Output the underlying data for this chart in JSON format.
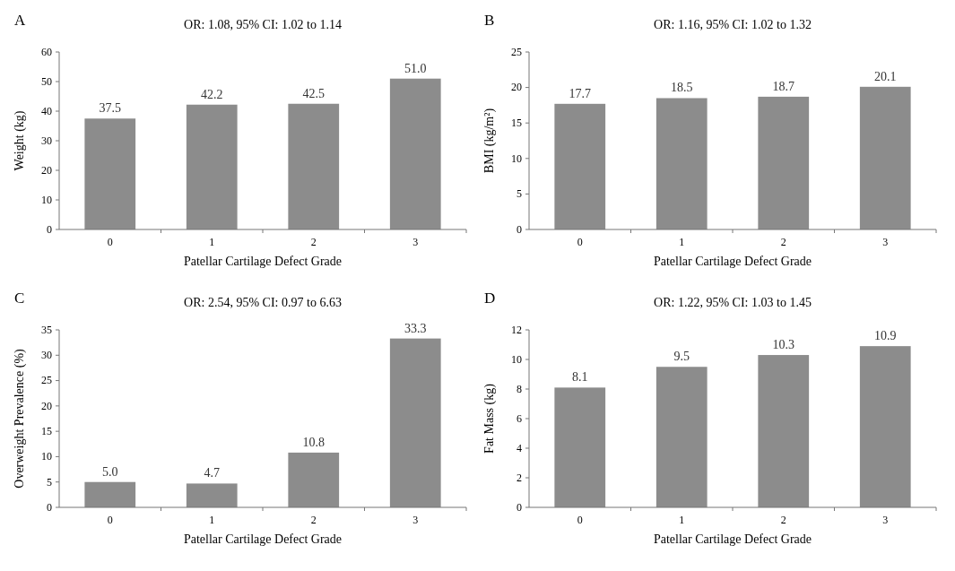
{
  "chart_data": [
    {
      "type": "bar",
      "title": "A",
      "subtitle": "OR: 1.08, 95% CI: 1.02 to 1.14",
      "xlabel": "Patellar Cartilage Defect Grade",
      "ylabel": "Weight (kg)",
      "categories": [
        "0",
        "1",
        "2",
        "3"
      ],
      "values": [
        37.5,
        42.2,
        42.5,
        51.0
      ],
      "value_labels": [
        "37.5",
        "42.2",
        "42.5",
        "51.0"
      ],
      "color": "#8c8c8c",
      "ylim": [
        0,
        60
      ],
      "yticks": [
        0,
        10,
        20,
        30,
        40,
        50,
        60
      ],
      "grid": false
    },
    {
      "type": "bar",
      "title": "B",
      "subtitle": "OR: 1.16, 95% CI: 1.02 to 1.32",
      "xlabel": "Patellar Cartilage Defect Grade",
      "ylabel": "BMI (kg/m²)",
      "categories": [
        "0",
        "1",
        "2",
        "3"
      ],
      "values": [
        17.7,
        18.5,
        18.7,
        20.1
      ],
      "value_labels": [
        "17.7",
        "18.5",
        "18.7",
        "20.1"
      ],
      "color": "#8c8c8c",
      "ylim": [
        0,
        25
      ],
      "yticks": [
        0,
        5,
        10,
        15,
        20,
        25
      ],
      "grid": false
    },
    {
      "type": "bar",
      "title": "C",
      "subtitle": "OR: 2.54, 95% CI: 0.97 to 6.63",
      "xlabel": "Patellar Cartilage Defect Grade",
      "ylabel": "Overweight Prevalence (%)",
      "categories": [
        "0",
        "1",
        "2",
        "3"
      ],
      "values": [
        5.0,
        4.7,
        10.8,
        33.3
      ],
      "value_labels": [
        "5.0",
        "4.7",
        "10.8",
        "33.3"
      ],
      "color": "#8c8c8c",
      "ylim": [
        0,
        35
      ],
      "yticks": [
        0,
        5,
        10,
        15,
        20,
        25,
        30,
        35
      ],
      "grid": false
    },
    {
      "type": "bar",
      "title": "D",
      "subtitle": "OR: 1.22, 95% CI: 1.03 to 1.45",
      "xlabel": "Patellar Cartilage Defect Grade",
      "ylabel": "Fat Mass (kg)",
      "categories": [
        "0",
        "1",
        "2",
        "3"
      ],
      "values": [
        8.1,
        9.5,
        10.3,
        10.9
      ],
      "value_labels": [
        "8.1",
        "9.5",
        "10.3",
        "10.9"
      ],
      "color": "#8c8c8c",
      "ylim": [
        0,
        12
      ],
      "yticks": [
        0,
        2,
        4,
        6,
        8,
        10,
        12
      ],
      "grid": false
    }
  ]
}
